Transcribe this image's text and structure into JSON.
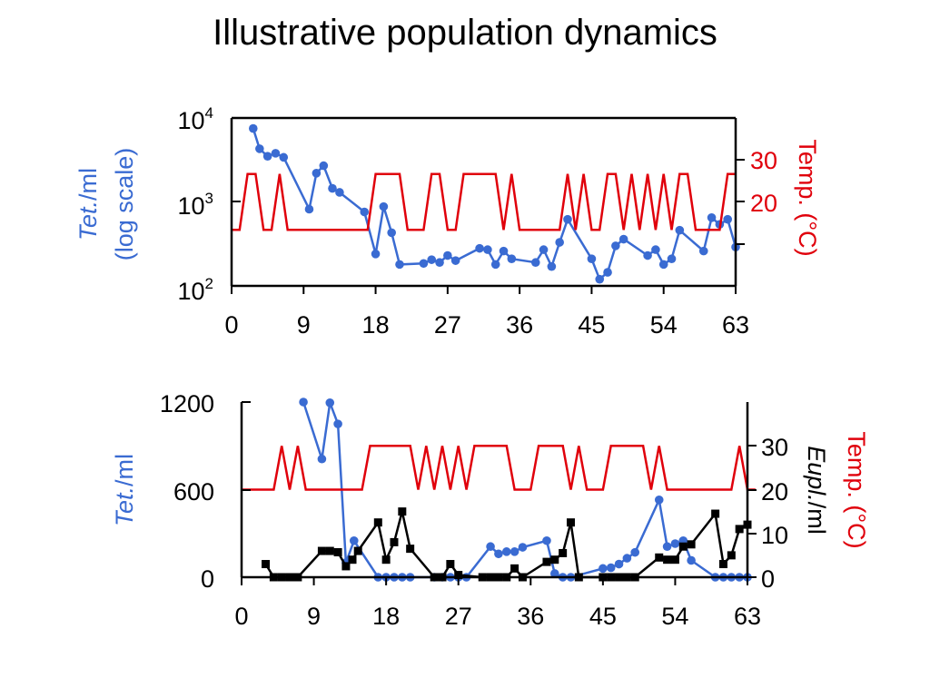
{
  "page": {
    "title": "Illustrative population dynamics"
  },
  "colors": {
    "tet": "#3a6bd2",
    "temp": "#e0000b",
    "eupl": "#000000",
    "axis": "#000000"
  },
  "chart_data": [
    {
      "type": "line",
      "title": "",
      "xlabel": "",
      "x_ticks": [
        "0",
        "9",
        "18",
        "27",
        "36",
        "45",
        "54",
        "63"
      ],
      "xlim": [
        0,
        63
      ],
      "left_axis": {
        "label_italic": "Tet.",
        "label_rest": "/ml",
        "label_line2": "(log scale)",
        "scale": "log",
        "ylim": [
          100,
          10000
        ],
        "ticks": [
          {
            "value": 100,
            "base": "10",
            "exp": "2"
          },
          {
            "value": 1000,
            "base": "10",
            "exp": "3"
          },
          {
            "value": 10000,
            "base": "10",
            "exp": "4"
          }
        ]
      },
      "right_axis": {
        "label": "Temp. (°C)",
        "ylim": [
          10,
          40
        ],
        "ticks": [
          "20",
          "30"
        ]
      },
      "series": [
        {
          "key": "tet",
          "axis": "left",
          "marker": "circle",
          "points": [
            [
              2.7,
              7500
            ],
            [
              3.5,
              4300
            ],
            [
              4.5,
              3500
            ],
            [
              5.5,
              3800
            ],
            [
              6.5,
              3400
            ],
            [
              9.7,
              820
            ],
            [
              10.6,
              2200
            ],
            [
              11.5,
              2700
            ],
            [
              12.6,
              1450
            ],
            [
              13.5,
              1300
            ],
            [
              16.6,
              760
            ],
            [
              18.0,
              240
            ],
            [
              19.0,
              880
            ],
            [
              20.0,
              430
            ],
            [
              21.0,
              180
            ],
            [
              24.0,
              185
            ],
            [
              25.0,
              205
            ],
            [
              26.0,
              190
            ],
            [
              27.0,
              230
            ],
            [
              28.0,
              200
            ],
            [
              31.0,
              280
            ],
            [
              32.0,
              270
            ],
            [
              33.0,
              180
            ],
            [
              34.0,
              260
            ],
            [
              35.0,
              210
            ],
            [
              38.0,
              190
            ],
            [
              39.0,
              270
            ],
            [
              40.0,
              170
            ],
            [
              41.0,
              330
            ],
            [
              42.0,
              620
            ],
            [
              45.0,
              210
            ],
            [
              46.0,
              120
            ],
            [
              47.0,
              145
            ],
            [
              48.0,
              300
            ],
            [
              49.0,
              360
            ],
            [
              52.0,
              230
            ],
            [
              53.0,
              270
            ],
            [
              54.0,
              180
            ],
            [
              55.0,
              210
            ],
            [
              56.0,
              460
            ],
            [
              59.0,
              260
            ],
            [
              60.0,
              650
            ],
            [
              61.0,
              540
            ],
            [
              62.0,
              620
            ],
            [
              63.0,
              290
            ]
          ]
        },
        {
          "key": "temp",
          "axis": "right",
          "marker": "none",
          "points": [
            [
              0,
              20
            ],
            [
              1,
              20
            ],
            [
              2,
              30
            ],
            [
              3,
              30
            ],
            [
              4,
              20
            ],
            [
              5,
              20
            ],
            [
              6,
              30
            ],
            [
              7,
              20
            ],
            [
              17,
              20
            ],
            [
              18,
              30
            ],
            [
              21,
              30
            ],
            [
              22,
              20
            ],
            [
              24,
              20
            ],
            [
              25,
              30
            ],
            [
              26,
              30
            ],
            [
              27,
              20
            ],
            [
              28,
              20
            ],
            [
              29,
              30
            ],
            [
              33,
              30
            ],
            [
              34,
              20
            ],
            [
              35,
              30
            ],
            [
              36,
              20
            ],
            [
              41,
              20
            ],
            [
              42,
              30
            ],
            [
              43,
              20
            ],
            [
              44,
              30
            ],
            [
              45,
              20
            ],
            [
              46,
              20
            ],
            [
              47,
              30
            ],
            [
              48,
              30
            ],
            [
              49,
              20
            ],
            [
              50,
              30
            ],
            [
              51,
              20
            ],
            [
              52,
              30
            ],
            [
              53,
              20
            ],
            [
              54,
              30
            ],
            [
              55,
              20
            ],
            [
              56,
              30
            ],
            [
              57,
              30
            ],
            [
              58,
              20
            ],
            [
              61,
              20
            ],
            [
              62,
              30
            ],
            [
              63,
              30
            ]
          ]
        }
      ]
    },
    {
      "type": "line",
      "title": "",
      "xlabel": "",
      "x_ticks": [
        "0",
        "9",
        "18",
        "27",
        "36",
        "45",
        "54",
        "63"
      ],
      "xlim": [
        0,
        63
      ],
      "left_axis": {
        "label_italic": "Tet.",
        "label_rest": "/ml",
        "ylim": [
          0,
          1200
        ],
        "ticks": [
          "0",
          "600",
          "1200"
        ]
      },
      "right_axis": {
        "label": "Temp. (°C)",
        "label2_italic": "Eupl.",
        "label2_rest": "/ml",
        "ylim": [
          0,
          40
        ],
        "ticks": [
          "0",
          "10",
          "20",
          "30"
        ]
      },
      "series": [
        {
          "key": "tet",
          "axis": "left",
          "marker": "circle",
          "points": [
            [
              7.7,
              1200
            ],
            [
              10.0,
              810
            ],
            [
              11.0,
              1195
            ],
            [
              12.0,
              1050
            ],
            [
              13.0,
              100
            ],
            [
              14.0,
              250
            ],
            [
              17.0,
              0
            ],
            [
              18.0,
              0
            ],
            [
              19.0,
              0
            ],
            [
              20.0,
              0
            ],
            [
              21.0,
              0
            ],
            [
              24.0,
              0
            ],
            [
              25.0,
              0
            ],
            [
              26.0,
              0
            ],
            [
              27.0,
              0
            ],
            [
              28.0,
              0
            ],
            [
              31.0,
              210
            ],
            [
              32.0,
              160
            ],
            [
              33.0,
              175
            ],
            [
              34.0,
              175
            ],
            [
              35.0,
              205
            ],
            [
              38.0,
              250
            ],
            [
              39.0,
              25
            ],
            [
              40.0,
              0
            ],
            [
              41.0,
              0
            ],
            [
              45.0,
              60
            ],
            [
              46.0,
              65
            ],
            [
              47.0,
              90
            ],
            [
              48.0,
              130
            ],
            [
              49.0,
              170
            ],
            [
              52.0,
              530
            ],
            [
              53.0,
              210
            ],
            [
              54.0,
              230
            ],
            [
              55.0,
              250
            ],
            [
              56.0,
              115
            ],
            [
              59.0,
              0
            ],
            [
              60.0,
              0
            ],
            [
              61.0,
              0
            ],
            [
              62.0,
              0
            ],
            [
              63.0,
              0
            ]
          ]
        },
        {
          "key": "eupl",
          "axis": "right",
          "marker": "square",
          "points": [
            [
              3.0,
              3
            ],
            [
              4.0,
              0
            ],
            [
              5.0,
              0
            ],
            [
              6.0,
              0
            ],
            [
              7.0,
              0
            ],
            [
              10.0,
              6
            ],
            [
              11.0,
              6
            ],
            [
              12.0,
              5.7
            ],
            [
              13.0,
              2.5
            ],
            [
              13.8,
              4
            ],
            [
              14.5,
              6
            ],
            [
              17.0,
              12.5
            ],
            [
              18.0,
              4
            ],
            [
              19.0,
              8
            ],
            [
              20.0,
              15
            ],
            [
              21.0,
              6.5
            ],
            [
              24.0,
              0
            ],
            [
              25.0,
              0
            ],
            [
              26.0,
              3
            ],
            [
              27.0,
              0.5
            ],
            [
              30.0,
              0
            ],
            [
              31.0,
              0
            ],
            [
              32.0,
              0
            ],
            [
              33.0,
              0
            ],
            [
              34.0,
              2
            ],
            [
              35.0,
              0
            ],
            [
              38.0,
              3.5
            ],
            [
              39.0,
              4
            ],
            [
              40.0,
              5.5
            ],
            [
              41.0,
              12.5
            ],
            [
              42.0,
              0
            ],
            [
              45.0,
              0
            ],
            [
              46.0,
              0
            ],
            [
              47.0,
              0
            ],
            [
              48.0,
              0
            ],
            [
              49.0,
              0
            ],
            [
              52.0,
              4.5
            ],
            [
              53.0,
              4
            ],
            [
              54.0,
              4
            ],
            [
              55.0,
              7
            ],
            [
              56.0,
              7.5
            ],
            [
              59.0,
              14.5
            ],
            [
              60.0,
              3
            ],
            [
              61.0,
              5
            ],
            [
              62.0,
              11
            ],
            [
              63.0,
              12
            ]
          ]
        },
        {
          "key": "temp",
          "axis": "right",
          "marker": "none",
          "points": [
            [
              0,
              20
            ],
            [
              4,
              20
            ],
            [
              5,
              30
            ],
            [
              6,
              20
            ],
            [
              7,
              30
            ],
            [
              8,
              20
            ],
            [
              15,
              20
            ],
            [
              16,
              30
            ],
            [
              21,
              30
            ],
            [
              22,
              20
            ],
            [
              23,
              30
            ],
            [
              24,
              20
            ],
            [
              25,
              30
            ],
            [
              26,
              20
            ],
            [
              27,
              30
            ],
            [
              28,
              20
            ],
            [
              29,
              30
            ],
            [
              33,
              30
            ],
            [
              34,
              20
            ],
            [
              36,
              20
            ],
            [
              37,
              30
            ],
            [
              40,
              30
            ],
            [
              41,
              20
            ],
            [
              42,
              30
            ],
            [
              43,
              20
            ],
            [
              45,
              20
            ],
            [
              46,
              30
            ],
            [
              50,
              30
            ],
            [
              51,
              20
            ],
            [
              52,
              30
            ],
            [
              53,
              20
            ],
            [
              61,
              20
            ],
            [
              62,
              30
            ],
            [
              63,
              20
            ],
            [
              64,
              20
            ]
          ]
        }
      ]
    }
  ]
}
